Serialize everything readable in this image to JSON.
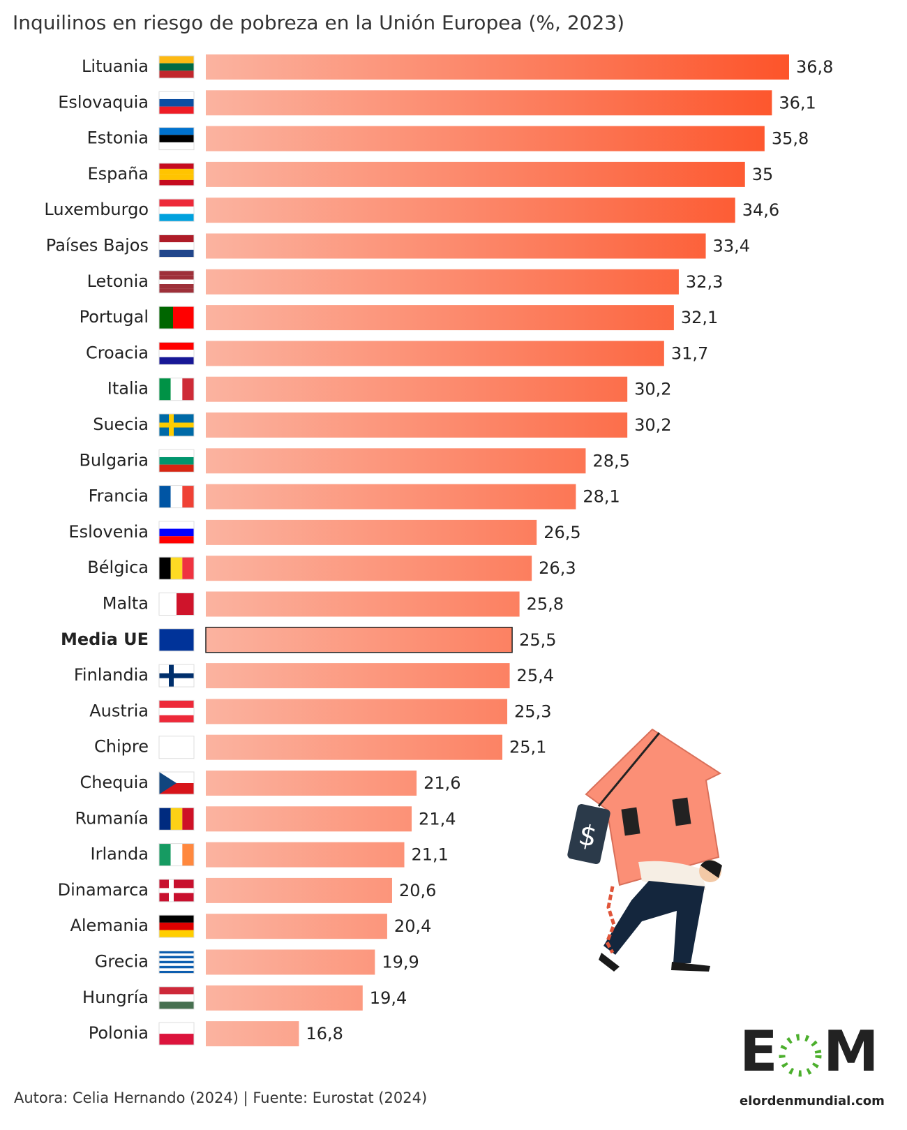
{
  "chart_data": {
    "type": "bar",
    "orientation": "horizontal",
    "title": "Inquilinos en riesgo de pobreza en la Unión Europea (%, 2023)",
    "categories": [
      "Lituania",
      "Eslovaquia",
      "Estonia",
      "España",
      "Luxemburgo",
      "Países Bajos",
      "Letonia",
      "Portugal",
      "Croacia",
      "Italia",
      "Suecia",
      "Bulgaria",
      "Francia",
      "Eslovenia",
      "Bélgica",
      "Malta",
      "Media UE",
      "Finlandia",
      "Austria",
      "Chipre",
      "Chequia",
      "Rumanía",
      "Irlanda",
      "Dinamarca",
      "Alemania",
      "Grecia",
      "Hungría",
      "Polonia"
    ],
    "values": [
      36.8,
      36.1,
      35.8,
      35,
      34.6,
      33.4,
      32.3,
      32.1,
      31.7,
      30.2,
      30.2,
      28.5,
      28.1,
      26.5,
      26.3,
      25.8,
      25.5,
      25.4,
      25.3,
      25.1,
      21.6,
      21.4,
      21.1,
      20.6,
      20.4,
      19.9,
      19.4,
      16.8
    ],
    "value_labels": [
      "36,8",
      "36,1",
      "35,8",
      "35",
      "34,6",
      "33,4",
      "32,3",
      "32,1",
      "31,7",
      "30,2",
      "30,2",
      "28,5",
      "28,1",
      "26,5",
      "26,3",
      "25,8",
      "25,5",
      "25,4",
      "25,3",
      "25,1",
      "21,6",
      "21,4",
      "21,1",
      "20,6",
      "20,4",
      "19,9",
      "19,4",
      "16,8"
    ],
    "color_low": "#fbb3a0",
    "color_high": "#fd542a",
    "highlight": "Media UE",
    "xlim": [
      13,
      37
    ]
  },
  "footer": {
    "credit": "Autora: Celia Hernando (2024) | Fuente: Eurostat (2024)",
    "logo": {
      "left": "E",
      "right": "M",
      "site": "elordenmundial.com"
    }
  }
}
